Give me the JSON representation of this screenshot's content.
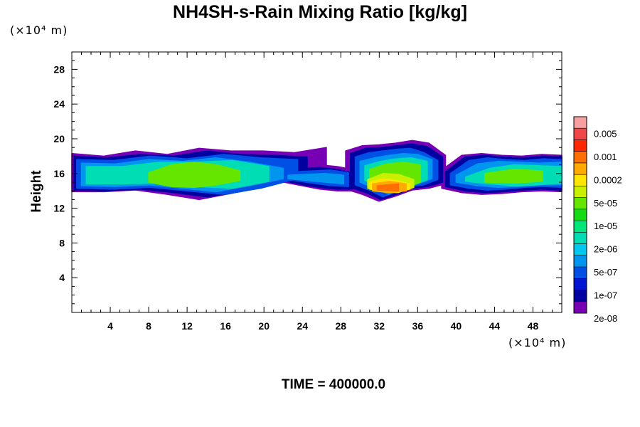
{
  "chart_data": {
    "type": "heatmap",
    "title": "NH4SH-s-Rain Mixing Ratio [kg/kg]",
    "ylabel": "Height",
    "x_unit": "(×10⁴ m)",
    "y_unit": "(×10⁴ m)",
    "time_label": "TIME = 400000.0",
    "xlim": [
      0,
      51
    ],
    "ylim": [
      0,
      30
    ],
    "x_ticks": [
      4,
      8,
      12,
      16,
      20,
      24,
      28,
      32,
      36,
      40,
      44,
      48
    ],
    "y_ticks": [
      4,
      8,
      12,
      16,
      20,
      24,
      28
    ],
    "colorbar": {
      "levels": [
        "0.005",
        "0.001",
        "0.0002",
        "5e-05",
        "1e-05",
        "2e-06",
        "5e-07",
        "1e-07",
        "2e-08"
      ],
      "colors": [
        "#f8a0a0",
        "#f04848",
        "#ff2800",
        "#ff6e00",
        "#ffaa00",
        "#ffe600",
        "#c8f000",
        "#64e600",
        "#14dc14",
        "#00e678",
        "#00dcb4",
        "#00c8f0",
        "#0096f0",
        "#0050e6",
        "#0014d2",
        "#0000a0",
        "#7800b4"
      ]
    },
    "cloud_layers": [
      {
        "name": "outer",
        "color": "#7800b4",
        "regions": [
          {
            "x": [
              0,
              26.5
            ],
            "top": [
              18.3,
              18.0,
              18.6,
              18.2,
              18.9,
              18.6,
              18.6,
              18.4,
              19.0
            ],
            "bottom": [
              13.9,
              13.9,
              14.1,
              13.6,
              13.0,
              13.7,
              14.5,
              15.3,
              16.2
            ]
          },
          {
            "x": [
              20.2,
              29.5
            ],
            "top": [
              16.4,
              16.6,
              16.8,
              17.0,
              16.8,
              16.4
            ],
            "bottom": [
              15.2,
              15.0,
              14.6,
              14.2,
              14.0,
              14.0
            ]
          },
          {
            "x": [
              28.5,
              38.9
            ],
            "top": [
              18.6,
              19.2,
              19.3,
              19.5,
              19.8,
              19.5,
              18.1
            ],
            "bottom": [
              14.2,
              13.6,
              12.8,
              13.4,
              14.1,
              14.3,
              14.8
            ]
          },
          {
            "x": [
              38.5,
              51
            ],
            "top": [
              16.4,
              18.1,
              18.3,
              18.1,
              18.0,
              18.2,
              18.1
            ],
            "bottom": [
              14.3,
              13.8,
              13.6,
              13.7,
              13.9,
              14.0,
              13.9
            ]
          }
        ]
      },
      {
        "name": "dark-blue",
        "color": "#0000a0",
        "regions": [
          {
            "x": [
              0.2,
              24.5
            ],
            "top": [
              18.0,
              17.8,
              18.2,
              18.0,
              18.6,
              18.2,
              18.1,
              17.9
            ],
            "bottom": [
              14.1,
              14.0,
              14.2,
              13.8,
              13.3,
              13.9,
              14.8,
              15.8
            ]
          },
          {
            "x": [
              20.6,
              29.2
            ],
            "top": [
              16.2,
              16.4,
              16.6,
              16.7,
              16.5,
              16.1
            ],
            "bottom": [
              15.3,
              15.1,
              14.7,
              14.4,
              14.2,
              14.2
            ]
          },
          {
            "x": [
              29.0,
              38.6
            ],
            "top": [
              18.3,
              18.9,
              19.0,
              19.2,
              19.4,
              19.1,
              17.9
            ],
            "bottom": [
              14.4,
              13.8,
              13.0,
              13.6,
              14.3,
              14.5,
              15.0
            ]
          },
          {
            "x": [
              38.9,
              51
            ],
            "top": [
              16.2,
              17.9,
              18.1,
              17.9,
              17.8,
              18.0,
              17.9
            ],
            "bottom": [
              14.5,
              14.0,
              13.8,
              13.9,
              14.1,
              14.2,
              14.1
            ]
          }
        ]
      },
      {
        "name": "blue",
        "color": "#0050e6",
        "regions": [
          {
            "x": [
              0.5,
              23.5
            ],
            "top": [
              17.6,
              17.5,
              18.0,
              17.7,
              18.2,
              17.8,
              17.6
            ],
            "bottom": [
              14.3,
              14.2,
              14.4,
              14.0,
              13.6,
              14.3,
              15.4
            ]
          },
          {
            "x": [
              21.2,
              28.8
            ],
            "top": [
              16.0,
              16.2,
              16.3,
              16.4,
              16.1
            ],
            "bottom": [
              15.4,
              15.2,
              14.9,
              14.6,
              14.5
            ]
          },
          {
            "x": [
              29.5,
              38.1
            ],
            "top": [
              17.9,
              18.4,
              18.6,
              18.8,
              18.9,
              18.4,
              17.5
            ],
            "bottom": [
              14.7,
              14.1,
              13.3,
              13.9,
              14.5,
              14.7,
              15.3
            ]
          },
          {
            "x": [
              39.4,
              51
            ],
            "top": [
              16.0,
              17.5,
              17.8,
              17.6,
              17.5,
              17.7,
              17.6
            ],
            "bottom": [
              14.7,
              14.3,
              14.1,
              14.2,
              14.4,
              14.5,
              14.4
            ]
          }
        ]
      },
      {
        "name": "light-blue",
        "color": "#0096f0",
        "regions": [
          {
            "x": [
              1.0,
              22.0
            ],
            "top": [
              17.2,
              17.1,
              17.6,
              17.4,
              17.8,
              17.3,
              16.6
            ],
            "bottom": [
              14.6,
              14.5,
              14.7,
              14.3,
              13.9,
              14.6,
              15.4
            ]
          },
          {
            "x": [
              22.5,
              28.3
            ],
            "top": [
              15.8,
              15.9,
              16.0,
              15.8
            ],
            "bottom": [
              15.4,
              15.2,
              15.0,
              14.8
            ]
          },
          {
            "x": [
              30.0,
              37.5
            ],
            "top": [
              17.4,
              17.8,
              18.1,
              18.3,
              18.2,
              17.6
            ],
            "bottom": [
              15.0,
              14.3,
              13.6,
              14.2,
              14.8,
              15.4
            ]
          },
          {
            "x": [
              40.0,
              51
            ],
            "top": [
              15.8,
              17.1,
              17.4,
              17.3,
              17.2,
              17.3
            ],
            "bottom": [
              15.0,
              14.6,
              14.4,
              14.5,
              14.7,
              14.7
            ]
          }
        ]
      },
      {
        "name": "cyan",
        "color": "#00dcb4",
        "regions": [
          {
            "x": [
              1.5,
              20.5
            ],
            "top": [
              16.8,
              16.8,
              17.3,
              17.3,
              17.5,
              16.8
            ],
            "bottom": [
              14.8,
              14.8,
              14.9,
              14.5,
              14.3,
              15.1
            ]
          },
          {
            "x": [
              30.5,
              37.0
            ],
            "top": [
              16.9,
              17.4,
              17.7,
              17.8,
              17.4
            ],
            "bottom": [
              15.2,
              14.5,
              13.9,
              14.6,
              15.3
            ]
          },
          {
            "x": [
              41.0,
              51
            ],
            "top": [
              15.6,
              16.6,
              17.0,
              16.9,
              16.8
            ],
            "bottom": [
              15.1,
              14.8,
              14.6,
              14.7,
              14.9
            ]
          }
        ]
      },
      {
        "name": "green",
        "color": "#64e600",
        "regions": [
          {
            "x": [
              8.0,
              17.5
            ],
            "top": [
              16.1,
              17.0,
              17.3,
              17.0,
              16.3
            ],
            "bottom": [
              15.0,
              14.5,
              14.4,
              14.7,
              15.2
            ]
          },
          {
            "x": [
              31.0,
              36.3
            ],
            "top": [
              16.5,
              17.1,
              17.3,
              17.0
            ],
            "bottom": [
              15.3,
              14.4,
              14.3,
              15.0
            ]
          },
          {
            "x": [
              43.0,
              49.0
            ],
            "top": [
              16.0,
              16.5,
              16.3
            ],
            "bottom": [
              15.0,
              14.9,
              15.1
            ]
          }
        ]
      },
      {
        "name": "yellow-green",
        "color": "#c8f000",
        "regions": [
          {
            "x": [
              30.8,
              35.6
            ],
            "top": [
              15.3,
              16.0,
              15.9,
              15.3
            ],
            "bottom": [
              14.3,
              13.9,
              13.8,
              14.4
            ]
          }
        ]
      },
      {
        "name": "yellow",
        "color": "#ffe600",
        "regions": [
          {
            "x": [
              31.0,
              35.2
            ],
            "top": [
              15.0,
              15.4,
              15.2,
              14.8
            ],
            "bottom": [
              14.2,
              13.9,
              13.8,
              14.2
            ]
          }
        ]
      },
      {
        "name": "orange",
        "color": "#ffaa00",
        "regions": [
          {
            "x": [
              31.3,
              34.8
            ],
            "top": [
              14.8,
              15.1,
              14.8
            ],
            "bottom": [
              14.0,
              13.8,
              14.0
            ]
          }
        ]
      },
      {
        "name": "dark-orange",
        "color": "#ff6e00",
        "regions": [
          {
            "x": [
              31.8,
              34.0
            ],
            "top": [
              14.6,
              14.8
            ],
            "bottom": [
              14.1,
              14.0
            ]
          }
        ]
      }
    ]
  }
}
